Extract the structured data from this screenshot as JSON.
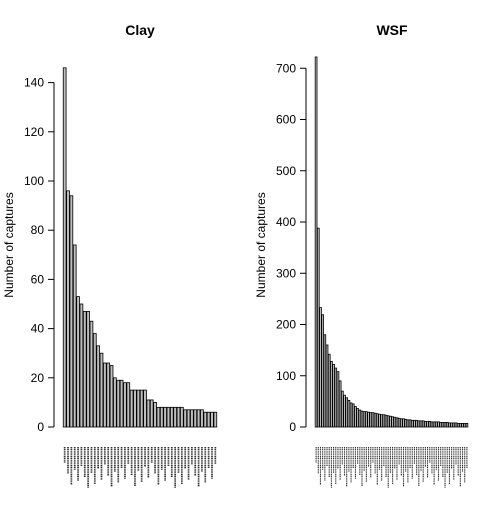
{
  "chart_data": [
    {
      "type": "bar",
      "title": "Clay",
      "ylabel": "Number of captures",
      "xlabel": "",
      "ylim": [
        0,
        150
      ],
      "yticks": [
        0,
        20,
        40,
        60,
        80,
        100,
        120,
        140
      ],
      "values": [
        146,
        96,
        94,
        74,
        53,
        50,
        47,
        47,
        43,
        38,
        33,
        30,
        26,
        26,
        25,
        20,
        19,
        19,
        18,
        18,
        15,
        15,
        15,
        15,
        15,
        11,
        11,
        10,
        8,
        8,
        8,
        8,
        8,
        8,
        8,
        8,
        7,
        7,
        7,
        7,
        7,
        7,
        6,
        6,
        6,
        6
      ],
      "grid": false
    },
    {
      "type": "bar",
      "title": "WSF",
      "ylabel": "Number of captures",
      "xlabel": "",
      "ylim": [
        0,
        720
      ],
      "yticks": [
        0,
        100,
        200,
        300,
        400,
        500,
        600,
        700
      ],
      "values": [
        722,
        388,
        233,
        219,
        180,
        160,
        142,
        128,
        122,
        115,
        108,
        90,
        70,
        62,
        57,
        52,
        47,
        45,
        40,
        36,
        33,
        31,
        30,
        30,
        29,
        28,
        28,
        27,
        26,
        25,
        24,
        24,
        23,
        22,
        21,
        20,
        19,
        18,
        17,
        16,
        16,
        15,
        14,
        14,
        13,
        13,
        13,
        12,
        12,
        12,
        11,
        11,
        11,
        10,
        10,
        10,
        10,
        9,
        9,
        9,
        9,
        8,
        8,
        8,
        8,
        7,
        7,
        7,
        7,
        7
      ],
      "grid": false
    }
  ]
}
